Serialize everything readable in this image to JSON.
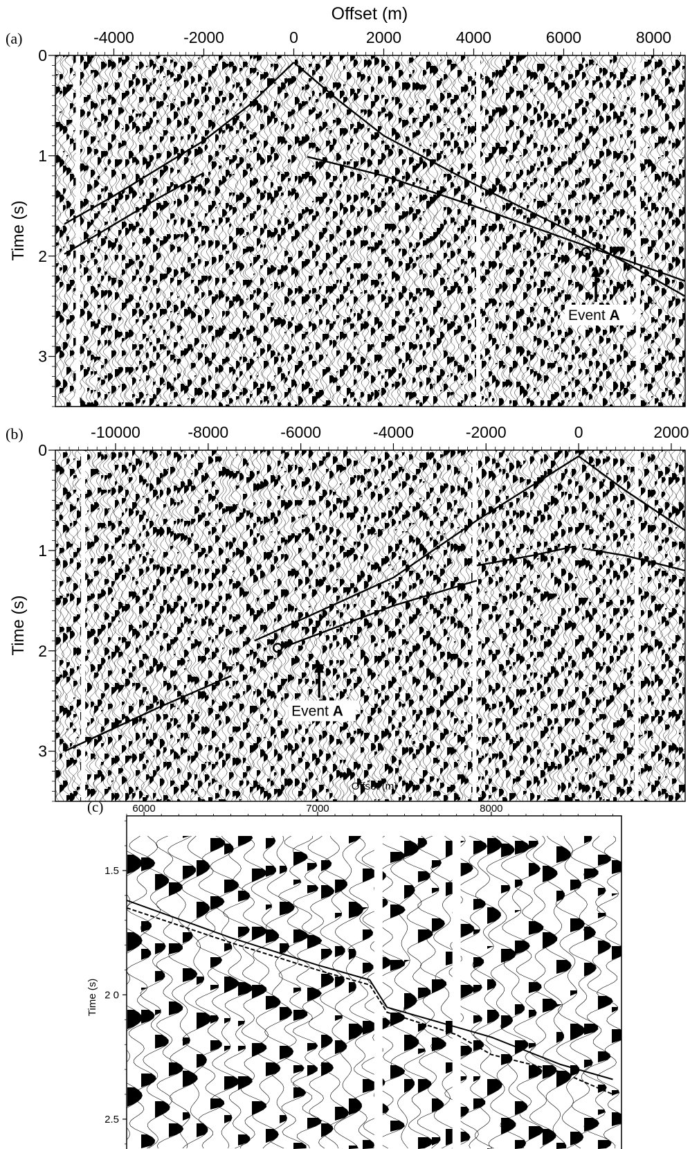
{
  "chart_data": [
    {
      "type": "seismic-shot-gather",
      "panel_label": "(a)",
      "xlabel": "Offset (m)",
      "ylabel": "Time (s)",
      "xticks": [
        -4000,
        -2000,
        0,
        2000,
        4000,
        6000,
        8000
      ],
      "yticks": [
        0,
        1,
        2,
        3
      ],
      "xlim": [
        -5300,
        8700
      ],
      "ylim": [
        0,
        3.5
      ],
      "trace_gaps_offset": [
        -4800,
        4100,
        7650
      ],
      "picked_arrivals": [
        {
          "name": "first-break-left",
          "x": [
            -5100,
            -4000,
            -2000,
            -1000,
            0
          ],
          "y": [
            1.68,
            1.4,
            0.85,
            0.5,
            0.07
          ]
        },
        {
          "name": "first-break-right",
          "x": [
            0,
            1000,
            2000,
            4000,
            6000,
            8700
          ],
          "y": [
            0.07,
            0.45,
            0.8,
            1.28,
            1.72,
            2.4
          ]
        },
        {
          "name": "reflection-left",
          "x": [
            -5100,
            -3000,
            -2000
          ],
          "y": [
            1.98,
            1.42,
            1.17
          ]
        },
        {
          "name": "reflection-right",
          "x": [
            300,
            2000,
            4000,
            6000,
            8700
          ],
          "y": [
            1.01,
            1.2,
            1.5,
            1.82,
            2.25
          ]
        }
      ],
      "annotation": {
        "text_prefix": "Event ",
        "text_bold": "A",
        "point": {
          "x": 6500,
          "y": 1.96
        }
      }
    },
    {
      "type": "seismic-shot-gather",
      "panel_label": "(b)",
      "xlabel": "",
      "ylabel": "Time (s)",
      "xticks": [
        -10000,
        -8000,
        -6000,
        -4000,
        -2000,
        0,
        2000
      ],
      "yticks": [
        0,
        1,
        2,
        3
      ],
      "xlim": [
        -11300,
        2300
      ],
      "ylim": [
        0,
        3.5
      ],
      "trace_gaps_offset": [
        -10700,
        -2250,
        1250
      ],
      "picked_arrivals": [
        {
          "name": "first-break-upper",
          "x": [
            -7000,
            -4000,
            -2200,
            0
          ],
          "y": [
            1.9,
            1.27,
            0.7,
            0.06
          ]
        },
        {
          "name": "first-break-right",
          "x": [
            0,
            1000,
            2300
          ],
          "y": [
            0.06,
            0.4,
            0.8
          ]
        },
        {
          "name": "event-a-lower",
          "x": [
            -6300,
            -4000,
            -2200
          ],
          "y": [
            1.95,
            1.55,
            1.3
          ]
        },
        {
          "name": "reflection-upper",
          "x": [
            -2200,
            -1000,
            -100
          ],
          "y": [
            1.15,
            1.05,
            0.96
          ]
        },
        {
          "name": "reflection-right",
          "x": [
            100,
            1000,
            2300
          ],
          "y": [
            0.98,
            1.05,
            1.2
          ]
        },
        {
          "name": "deep-event",
          "x": [
            -11100,
            -9000,
            -7500
          ],
          "y": [
            3.0,
            2.55,
            2.25
          ]
        }
      ],
      "annotation": {
        "text_prefix": "Event ",
        "text_bold": "A",
        "point": {
          "x": -6500,
          "y": 1.97
        }
      }
    },
    {
      "type": "seismic-shot-gather-zoom",
      "panel_label": "(c)",
      "xlabel": "Offset (m)",
      "ylabel": "Time (s)",
      "xticks": [
        6000,
        7000,
        8000
      ],
      "yticks": [
        1.5,
        2.0,
        2.5
      ],
      "ytick_labels": [
        "1.5",
        "2 0",
        "2.5"
      ],
      "xlim": [
        5900,
        8750
      ],
      "ylim": [
        1.28,
        2.62
      ],
      "trace_gaps_offset": [
        7350,
        7800
      ],
      "picked_arrivals": [
        {
          "name": "solid-pick",
          "style": "solid",
          "x": [
            5900,
            6500,
            7000,
            7300,
            7400,
            7800,
            8000,
            8400,
            8700
          ],
          "y": [
            1.62,
            1.77,
            1.88,
            1.94,
            2.05,
            2.13,
            2.17,
            2.28,
            2.34
          ]
        },
        {
          "name": "dashed-pick",
          "style": "dashed",
          "x": [
            5900,
            6500,
            7000,
            7300,
            7400,
            7800,
            8000,
            8400,
            8700
          ],
          "y": [
            1.65,
            1.79,
            1.9,
            1.96,
            2.07,
            2.16,
            2.24,
            2.31,
            2.4
          ]
        }
      ]
    }
  ]
}
